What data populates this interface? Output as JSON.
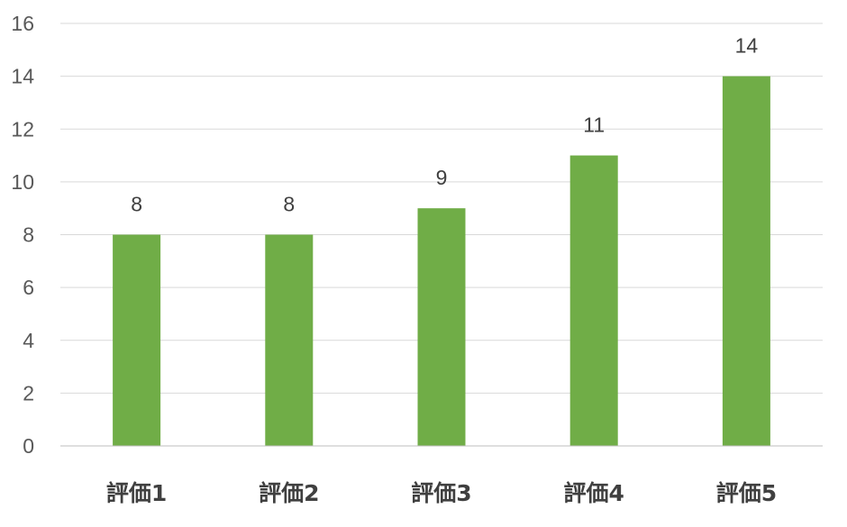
{
  "chart_data": {
    "type": "bar",
    "title": "",
    "xlabel": "",
    "ylabel": "",
    "categories": [
      "評価1",
      "評価2",
      "評価3",
      "評価4",
      "評価5"
    ],
    "values": [
      8,
      8,
      9,
      11,
      14
    ],
    "ylim": [
      0,
      16
    ],
    "yticks": [
      0,
      2,
      4,
      6,
      8,
      10,
      12,
      14,
      16
    ],
    "grid": true,
    "legend": "none",
    "bar_color": "#70ad47",
    "data_labels": true
  }
}
